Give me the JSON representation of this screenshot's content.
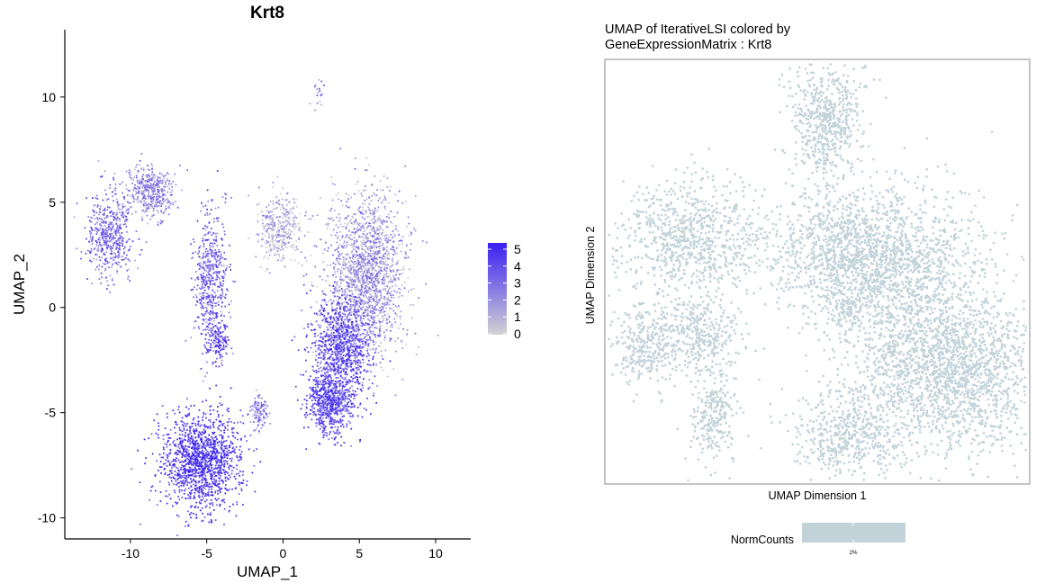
{
  "chart_data": [
    {
      "type": "scatter",
      "title": "Krt8",
      "xlabel": "UMAP_1",
      "ylabel": "UMAP_2",
      "xlim": [
        -14.3,
        12.3
      ],
      "ylim": [
        -11.0,
        13.2
      ],
      "xticks": [
        -10,
        -5,
        0,
        5,
        10
      ],
      "yticks": [
        -10,
        -5,
        0,
        5,
        10
      ],
      "grid": false,
      "legend": {
        "position": "right",
        "type": "colorbar",
        "ticks": [
          5,
          4,
          3,
          2,
          1,
          0
        ],
        "color_low": "#d3d3d3",
        "color_high": "#3b1ff2"
      },
      "clusters": [
        {
          "name": "left-blob",
          "x": -11.4,
          "y": 3.5,
          "sx": 0.75,
          "sy": 1.0,
          "n": 480,
          "expr": 0.6
        },
        {
          "name": "upper-left-blob",
          "x": -8.8,
          "y": 5.6,
          "sx": 0.8,
          "sy": 0.6,
          "n": 420,
          "expr": 0.45
        },
        {
          "name": "vertical-strip",
          "x": -4.8,
          "y": 1.4,
          "sx": 0.55,
          "sy": 1.6,
          "n": 520,
          "expr": 0.65
        },
        {
          "name": "small-ring",
          "x": -4.3,
          "y": -1.6,
          "sx": 0.4,
          "sy": 0.5,
          "n": 160,
          "expr": 0.7
        },
        {
          "name": "bottom-left-large",
          "x": -5.4,
          "y": -7.3,
          "sx": 1.3,
          "sy": 1.15,
          "n": 1400,
          "expr": 0.92
        },
        {
          "name": "small-minus1",
          "x": -1.6,
          "y": -5.0,
          "sx": 0.3,
          "sy": 0.4,
          "n": 110,
          "expr": 0.5
        },
        {
          "name": "gray-blob",
          "x": -0.3,
          "y": 3.8,
          "sx": 0.7,
          "sy": 0.8,
          "n": 360,
          "expr": 0.18
        },
        {
          "name": "right-upper-mass",
          "x": 5.4,
          "y": 1.8,
          "sx": 1.25,
          "sy": 1.9,
          "n": 1700,
          "expr": 0.35
        },
        {
          "name": "right-middle-mass",
          "x": 3.8,
          "y": -1.6,
          "sx": 1.0,
          "sy": 1.1,
          "n": 900,
          "expr": 0.75
        },
        {
          "name": "right-lower-mass",
          "x": 3.1,
          "y": -4.5,
          "sx": 0.8,
          "sy": 0.8,
          "n": 700,
          "expr": 0.82
        },
        {
          "name": "top-small",
          "x": 2.3,
          "y": 10.4,
          "sx": 0.2,
          "sy": 0.35,
          "n": 18,
          "expr": 0.5
        }
      ]
    },
    {
      "type": "scatter",
      "title": "UMAP of IterativeLSI colored by\nGeneExpressionMatrix : Krt8",
      "title_lines": [
        "UMAP of IterativeLSI colored by",
        "GeneExpressionMatrix : Krt8"
      ],
      "xlabel": "UMAP Dimension 1",
      "ylabel": "UMAP Dimension 2",
      "grid": false,
      "point_color": "#c1d3d9",
      "legend": {
        "position": "bottom",
        "label": "NormCounts",
        "tick": "2%",
        "color": "#c1d3d9"
      },
      "clusters": [
        {
          "name": "top",
          "x": 0.52,
          "y": 0.13,
          "sx": 0.045,
          "sy": 0.065,
          "n": 500
        },
        {
          "name": "top-tail",
          "x": 0.51,
          "y": 0.22,
          "sx": 0.012,
          "sy": 0.03,
          "n": 40
        },
        {
          "name": "left-upper",
          "x": 0.19,
          "y": 0.41,
          "sx": 0.09,
          "sy": 0.065,
          "n": 800
        },
        {
          "name": "left-small",
          "x": 0.09,
          "y": 0.67,
          "sx": 0.035,
          "sy": 0.05,
          "n": 280
        },
        {
          "name": "left-mid",
          "x": 0.21,
          "y": 0.64,
          "sx": 0.05,
          "sy": 0.05,
          "n": 380
        },
        {
          "name": "left-lower",
          "x": 0.25,
          "y": 0.83,
          "sx": 0.028,
          "sy": 0.06,
          "n": 260
        },
        {
          "name": "center-big",
          "x": 0.58,
          "y": 0.45,
          "sx": 0.1,
          "sy": 0.08,
          "n": 1300
        },
        {
          "name": "right-upper",
          "x": 0.74,
          "y": 0.55,
          "sx": 0.1,
          "sy": 0.12,
          "n": 1000
        },
        {
          "name": "right-lower",
          "x": 0.82,
          "y": 0.74,
          "sx": 0.12,
          "sy": 0.09,
          "n": 1700
        },
        {
          "name": "bottom-mid",
          "x": 0.57,
          "y": 0.89,
          "sx": 0.07,
          "sy": 0.05,
          "n": 500
        },
        {
          "name": "center-small",
          "x": 0.56,
          "y": 0.59,
          "sx": 0.02,
          "sy": 0.02,
          "n": 50
        }
      ]
    }
  ]
}
